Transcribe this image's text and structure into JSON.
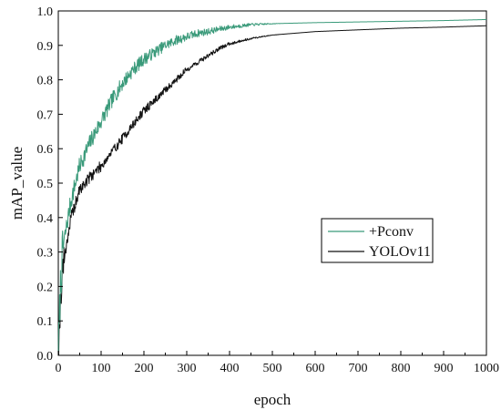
{
  "chart_data": {
    "type": "line",
    "title": "",
    "xlabel": "epoch",
    "ylabel": "mAP_value",
    "xlim": [
      0,
      1000
    ],
    "ylim": [
      0,
      1.0
    ],
    "xticks": [
      0,
      100,
      200,
      300,
      400,
      500,
      600,
      700,
      800,
      900,
      1000
    ],
    "yticks": [
      0.0,
      0.1,
      0.2,
      0.3,
      0.4,
      0.5,
      0.6,
      0.7,
      0.8,
      0.9,
      1.0
    ],
    "ytick_labels": [
      "0.0",
      "0.1",
      "0.2",
      "0.3",
      "0.4",
      "0.5",
      "0.6",
      "0.7",
      "0.8",
      "0.9",
      "1.0"
    ],
    "grid": false,
    "legend_position": "center-right",
    "series": [
      {
        "name": "+Pconv",
        "color": "#3a9a7a",
        "noise": 0.03,
        "x": [
          0,
          5,
          10,
          20,
          30,
          40,
          50,
          75,
          100,
          125,
          150,
          175,
          200,
          225,
          250,
          275,
          300,
          325,
          350,
          375,
          400,
          450,
          500,
          600,
          700,
          800,
          900,
          1000
        ],
        "y": [
          0.0,
          0.2,
          0.3,
          0.38,
          0.45,
          0.5,
          0.55,
          0.62,
          0.68,
          0.74,
          0.79,
          0.83,
          0.86,
          0.88,
          0.9,
          0.915,
          0.925,
          0.935,
          0.94,
          0.947,
          0.953,
          0.96,
          0.963,
          0.966,
          0.968,
          0.97,
          0.972,
          0.975
        ]
      },
      {
        "name": "YOLOv11",
        "color": "#111111",
        "noise": 0.02,
        "x": [
          0,
          5,
          10,
          20,
          30,
          40,
          50,
          75,
          100,
          125,
          150,
          175,
          200,
          225,
          250,
          275,
          300,
          325,
          350,
          375,
          400,
          450,
          500,
          600,
          700,
          800,
          900,
          1000
        ],
        "y": [
          0.0,
          0.15,
          0.25,
          0.33,
          0.4,
          0.44,
          0.48,
          0.52,
          0.55,
          0.59,
          0.63,
          0.67,
          0.71,
          0.74,
          0.77,
          0.8,
          0.83,
          0.85,
          0.87,
          0.89,
          0.905,
          0.92,
          0.93,
          0.94,
          0.945,
          0.95,
          0.953,
          0.957
        ]
      }
    ]
  }
}
